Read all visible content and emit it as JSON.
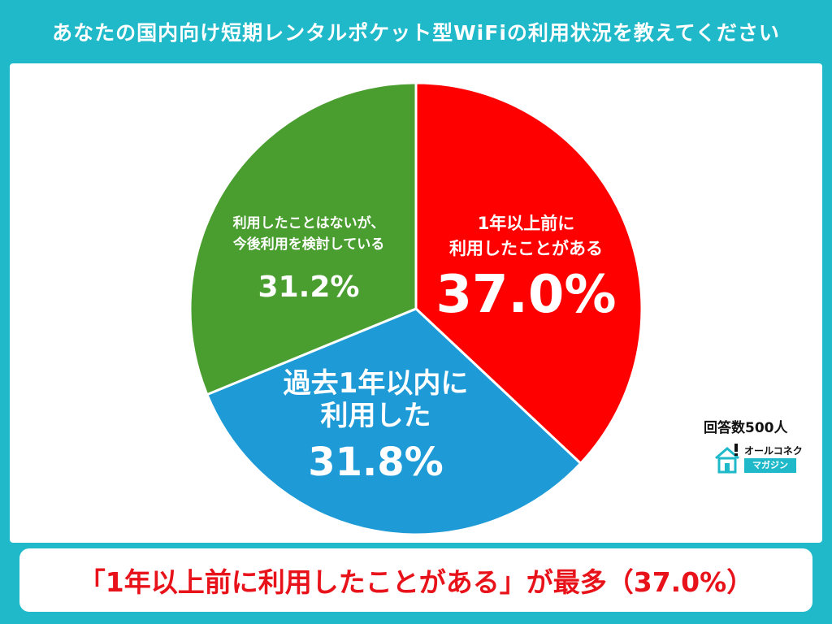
{
  "title": "あなたの国内向け短期レンタルポケット型WiFiの利用状況を教えてください",
  "respondents": "回答数500人",
  "logo": {
    "top_text": "オールコネクト",
    "bottom_text": "マガジン"
  },
  "summary": "「1年以上前に利用したことがある」が最多（37.0%）",
  "labels": {
    "red_cat1": "1年以上前に",
    "red_cat2": "利用したことがある",
    "red_pct": "37.0%",
    "blue_cat1": "過去1年以内に",
    "blue_cat2": "利用した",
    "blue_pct": "31.8%",
    "green_cat1": "利用したことはないが、",
    "green_cat2": "今後利用を検討している",
    "green_pct": "31.2%"
  },
  "colors": {
    "red": "#ff0000",
    "blue": "#1e9bd7",
    "green": "#4a9e2f",
    "accent": "#1fb9c9"
  },
  "chart_data": {
    "type": "pie",
    "title": "あなたの国内向け短期レンタルポケット型WiFiの利用状況を教えてください",
    "categories": [
      "1年以上前に利用したことがある",
      "過去1年以内に利用した",
      "利用したことはないが、今後利用を検討している"
    ],
    "values": [
      37.0,
      31.8,
      31.2
    ],
    "colors": [
      "#ff0000",
      "#1e9bd7",
      "#4a9e2f"
    ],
    "start": "12 o'clock",
    "direction": "clockwise"
  }
}
